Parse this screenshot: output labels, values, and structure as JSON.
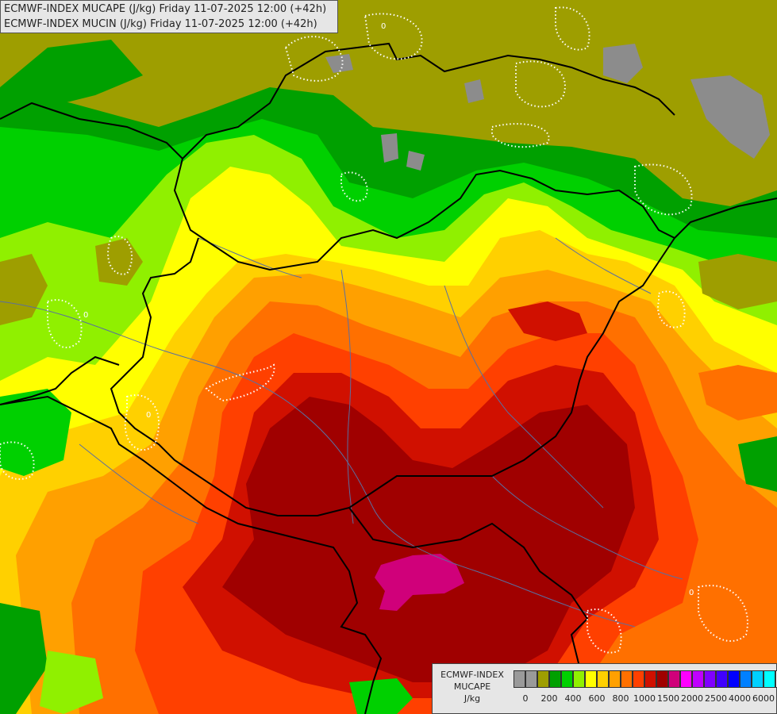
{
  "title": {
    "line1": "ECMWF-INDEX MUCAPE (J/kg) Friday 11-07-2025 12:00 (+42h)",
    "line2": "ECMWF-INDEX MUCIN (J/kg) Friday 11-07-2025 12:00 (+42h)"
  },
  "legend": {
    "model": "ECMWF-INDEX",
    "field": "MUCAPE",
    "unit": "J/kg",
    "colors": [
      "#9a9a9a",
      "#9a9a9a",
      "#9e9e00",
      "#00a000",
      "#00d000",
      "#90f000",
      "#ffff00",
      "#ffd000",
      "#ffa000",
      "#ff7000",
      "#ff4000",
      "#d01000",
      "#a00000",
      "#d0007a",
      "#ff00ff",
      "#c000ff",
      "#8000ff",
      "#4000ff",
      "#0000ff",
      "#0080ff",
      "#00d0ff",
      "#00ffff",
      "#ffffff"
    ],
    "tick_labels": [
      "0",
      "200",
      "400",
      "600",
      "800",
      "1000",
      "1500",
      "2000",
      "2500",
      "4000",
      "6000"
    ]
  },
  "contour_label": "0",
  "colors": {
    "lake": "#8c8c8c",
    "border": "#000000",
    "river": "#5a6fa0",
    "contour": "#ffffff"
  }
}
